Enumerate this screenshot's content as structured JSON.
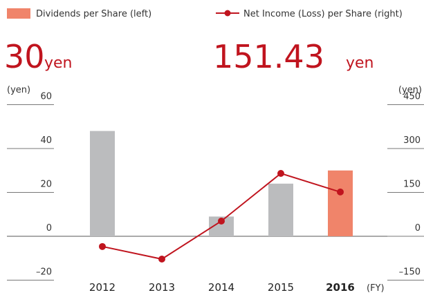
{
  "chart_data": {
    "type": "bar-line",
    "categories": [
      "2012",
      "2013",
      "2014",
      "2015",
      "2016"
    ],
    "highlight_category": 4,
    "x_label": "(FY)",
    "y_label": "(yen)",
    "y2_label": "(yen)",
    "headline_unit": "yen",
    "series": [
      {
        "name": "Dividends per Share (left)",
        "type": "bar",
        "color": "#bbbcbe",
        "highlight_color": "#f0846a",
        "values": [
          48,
          0,
          9,
          24,
          30
        ]
      },
      {
        "name": "Net Income (Loss) per Share (right)",
        "type": "line",
        "axis": "y2",
        "color": "#c0141e",
        "values": [
          -35,
          -78,
          52,
          215,
          151.43
        ]
      }
    ],
    "ylim": [
      -20,
      60
    ],
    "yticks": [
      60,
      40,
      20,
      0,
      {
        "value": -20,
        "label": "–20"
      }
    ],
    "y2lim": [
      -150,
      450
    ],
    "y2ticks": [
      450,
      300,
      150,
      0,
      {
        "value": -150,
        "label": "–150"
      }
    ]
  }
}
